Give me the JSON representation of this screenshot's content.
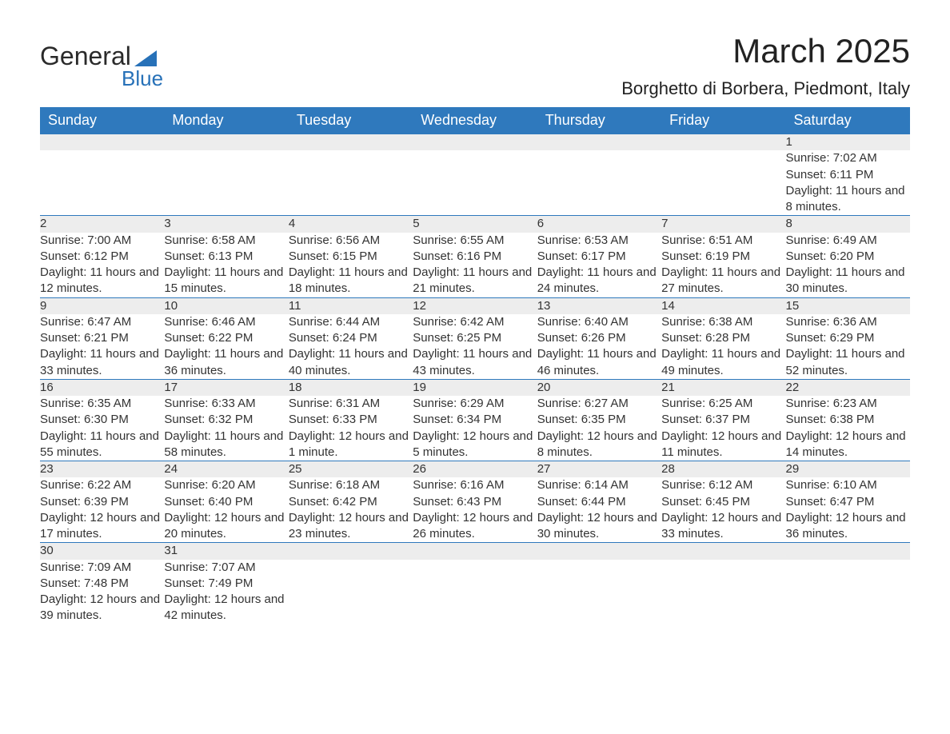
{
  "brand": {
    "name_a": "General",
    "name_b": "Blue"
  },
  "title": "March 2025",
  "location": "Borghetto di Borbera, Piedmont, Italy",
  "colors": {
    "header_bg": "#2f79bd",
    "header_text": "#ffffff",
    "row_stripe": "#ededed",
    "row_border": "#2f79bd",
    "text": "#333333",
    "brand_blue": "#2771b8"
  },
  "daysOfWeek": [
    "Sunday",
    "Monday",
    "Tuesday",
    "Wednesday",
    "Thursday",
    "Friday",
    "Saturday"
  ],
  "weeks": [
    [
      null,
      null,
      null,
      null,
      null,
      null,
      {
        "n": "1",
        "sunrise": "7:02 AM",
        "sunset": "6:11 PM",
        "daylight": "11 hours and 8 minutes."
      }
    ],
    [
      {
        "n": "2",
        "sunrise": "7:00 AM",
        "sunset": "6:12 PM",
        "daylight": "11 hours and 12 minutes."
      },
      {
        "n": "3",
        "sunrise": "6:58 AM",
        "sunset": "6:13 PM",
        "daylight": "11 hours and 15 minutes."
      },
      {
        "n": "4",
        "sunrise": "6:56 AM",
        "sunset": "6:15 PM",
        "daylight": "11 hours and 18 minutes."
      },
      {
        "n": "5",
        "sunrise": "6:55 AM",
        "sunset": "6:16 PM",
        "daylight": "11 hours and 21 minutes."
      },
      {
        "n": "6",
        "sunrise": "6:53 AM",
        "sunset": "6:17 PM",
        "daylight": "11 hours and 24 minutes."
      },
      {
        "n": "7",
        "sunrise": "6:51 AM",
        "sunset": "6:19 PM",
        "daylight": "11 hours and 27 minutes."
      },
      {
        "n": "8",
        "sunrise": "6:49 AM",
        "sunset": "6:20 PM",
        "daylight": "11 hours and 30 minutes."
      }
    ],
    [
      {
        "n": "9",
        "sunrise": "6:47 AM",
        "sunset": "6:21 PM",
        "daylight": "11 hours and 33 minutes."
      },
      {
        "n": "10",
        "sunrise": "6:46 AM",
        "sunset": "6:22 PM",
        "daylight": "11 hours and 36 minutes."
      },
      {
        "n": "11",
        "sunrise": "6:44 AM",
        "sunset": "6:24 PM",
        "daylight": "11 hours and 40 minutes."
      },
      {
        "n": "12",
        "sunrise": "6:42 AM",
        "sunset": "6:25 PM",
        "daylight": "11 hours and 43 minutes."
      },
      {
        "n": "13",
        "sunrise": "6:40 AM",
        "sunset": "6:26 PM",
        "daylight": "11 hours and 46 minutes."
      },
      {
        "n": "14",
        "sunrise": "6:38 AM",
        "sunset": "6:28 PM",
        "daylight": "11 hours and 49 minutes."
      },
      {
        "n": "15",
        "sunrise": "6:36 AM",
        "sunset": "6:29 PM",
        "daylight": "11 hours and 52 minutes."
      }
    ],
    [
      {
        "n": "16",
        "sunrise": "6:35 AM",
        "sunset": "6:30 PM",
        "daylight": "11 hours and 55 minutes."
      },
      {
        "n": "17",
        "sunrise": "6:33 AM",
        "sunset": "6:32 PM",
        "daylight": "11 hours and 58 minutes."
      },
      {
        "n": "18",
        "sunrise": "6:31 AM",
        "sunset": "6:33 PM",
        "daylight": "12 hours and 1 minute."
      },
      {
        "n": "19",
        "sunrise": "6:29 AM",
        "sunset": "6:34 PM",
        "daylight": "12 hours and 5 minutes."
      },
      {
        "n": "20",
        "sunrise": "6:27 AM",
        "sunset": "6:35 PM",
        "daylight": "12 hours and 8 minutes."
      },
      {
        "n": "21",
        "sunrise": "6:25 AM",
        "sunset": "6:37 PM",
        "daylight": "12 hours and 11 minutes."
      },
      {
        "n": "22",
        "sunrise": "6:23 AM",
        "sunset": "6:38 PM",
        "daylight": "12 hours and 14 minutes."
      }
    ],
    [
      {
        "n": "23",
        "sunrise": "6:22 AM",
        "sunset": "6:39 PM",
        "daylight": "12 hours and 17 minutes."
      },
      {
        "n": "24",
        "sunrise": "6:20 AM",
        "sunset": "6:40 PM",
        "daylight": "12 hours and 20 minutes."
      },
      {
        "n": "25",
        "sunrise": "6:18 AM",
        "sunset": "6:42 PM",
        "daylight": "12 hours and 23 minutes."
      },
      {
        "n": "26",
        "sunrise": "6:16 AM",
        "sunset": "6:43 PM",
        "daylight": "12 hours and 26 minutes."
      },
      {
        "n": "27",
        "sunrise": "6:14 AM",
        "sunset": "6:44 PM",
        "daylight": "12 hours and 30 minutes."
      },
      {
        "n": "28",
        "sunrise": "6:12 AM",
        "sunset": "6:45 PM",
        "daylight": "12 hours and 33 minutes."
      },
      {
        "n": "29",
        "sunrise": "6:10 AM",
        "sunset": "6:47 PM",
        "daylight": "12 hours and 36 minutes."
      }
    ],
    [
      {
        "n": "30",
        "sunrise": "7:09 AM",
        "sunset": "7:48 PM",
        "daylight": "12 hours and 39 minutes."
      },
      {
        "n": "31",
        "sunrise": "7:07 AM",
        "sunset": "7:49 PM",
        "daylight": "12 hours and 42 minutes."
      },
      null,
      null,
      null,
      null,
      null
    ]
  ],
  "labels": {
    "sunrise": "Sunrise: ",
    "sunset": "Sunset: ",
    "daylight": "Daylight: "
  }
}
